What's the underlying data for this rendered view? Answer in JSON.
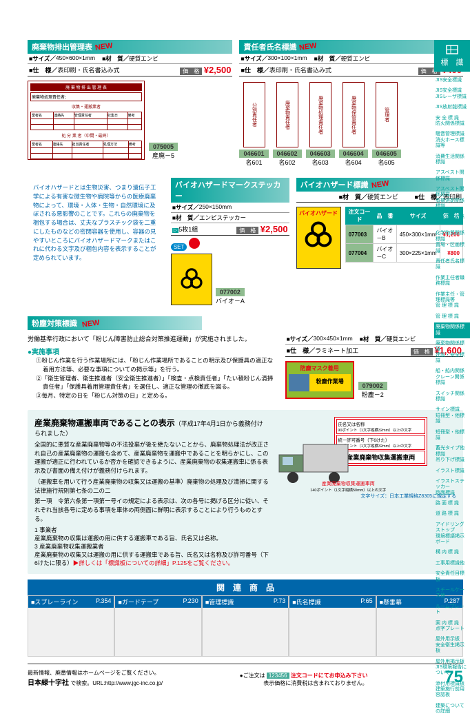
{
  "sections": {
    "waste_mgmt": {
      "title": "廃棄物排出管理表",
      "new": "NEW",
      "size_label": "■サイズ／",
      "size": "450×600×1mm",
      "material_label": "■材　質／",
      "material": "硬質エンビ",
      "spec_label": "■仕　様／",
      "spec": "表印刷・氏名書込み式",
      "price_label": "価　格",
      "price": "¥2,500",
      "code": "075005",
      "name": "産廃－5"
    },
    "responsible": {
      "title": "責任者氏名標識",
      "new": "NEW",
      "size_label": "■サイズ／",
      "size": "300×100×1mm",
      "material_label": "■材　質／",
      "material": "硬質エンビ",
      "spec_label": "■仕　様／",
      "spec": "表印刷・氏名書込み式",
      "price_label": "価　格",
      "price": "¥400",
      "tags": [
        {
          "code": "046601",
          "name": "名601",
          "text": "分別責任者"
        },
        {
          "code": "046602",
          "name": "名602",
          "text": "廃棄物責任者"
        },
        {
          "code": "046603",
          "name": "名603",
          "text": "廃棄物処理責任者"
        },
        {
          "code": "046604",
          "name": "名604",
          "text": "廃棄物保管責任者"
        },
        {
          "code": "046605",
          "name": "名605",
          "text": "管理者"
        }
      ]
    },
    "biohazard_info": "バイオハザードとは生物災害、つまり遺伝子工学による有害な微生物や病院等からの医療廃棄物によって、環境・人体・生物・自然環境に及ぼされる悪影響のことです。これらの廃棄物を梱包する場合は、丈夫なプラスチック袋を二重にしたものなどの密閉容器を使用し、容器の見やすいところにバイオハザードマークまたはこれに代わる文字及び梱包内容を表示することが定められています。",
    "bio_sticker": {
      "title": "バイオハザードマークステッカー",
      "size_label": "■サイズ／",
      "size": "250×150mm",
      "material_label": "■材　質／",
      "material": "エンビステッカー",
      "set": "5枚1組",
      "set_badge": "SET",
      "price_label": "価　格",
      "price": "¥2,500",
      "code": "077002",
      "name": "バイオ－A"
    },
    "bio_sign": {
      "title": "バイオハザード標識",
      "new": "NEW",
      "material_label": "■材　質／",
      "material": "硬質エンビ",
      "spec_label": "■仕　様／",
      "spec": "表印刷",
      "sign_text": "バイオハザード",
      "table": {
        "h1": "注文コード",
        "h2": "品　番",
        "h3": "サイズ",
        "h4": "価　格",
        "rows": [
          {
            "code": "077003",
            "name": "バイオ－B",
            "size": "450×300×1mm",
            "price": "¥1,200"
          },
          {
            "code": "077004",
            "name": "バイオ－C",
            "size": "300×225×1mm",
            "price": "¥800"
          }
        ]
      }
    },
    "dust": {
      "title": "粉塵対策標識",
      "new": "NEW",
      "intro": "労働基準行政において「粉じん障害防止総合対策推進運動」が実施されました。",
      "heading": "●実施事項",
      "items": [
        "①粉じん作業を行う作業場所には、「粉じん作業場所であることの明示及び保護具の適正な着用方法等、必要な事項についての掲示等」を行う。",
        "②「衛生管理者、衛生推進者（安全衛生推進者）」「検査・点検責任者」「たい積粉じん清掃責任者」「保護具着用管理責任者」を選任し、適正な管理の徹底を図る。",
        "③毎月、特定の日を「粉じん対策の日」と定める。"
      ],
      "size_label": "■サイズ／",
      "size": "300×450×1mm",
      "material_label": "■材　質／",
      "material": "硬質エンビ",
      "spec_label": "■仕　様／",
      "spec": "ラミネート加工",
      "price_label": "価　格",
      "price": "¥1,600",
      "sign_text1": "防塵マスク着用",
      "sign_text2": "粉塵作業場",
      "code": "079002",
      "name": "粉塵－2"
    },
    "waste_vehicle": {
      "title": "産業廃棄物運搬車両であることの表示",
      "subtitle": "（平成17年4月1日から義務付けられました）",
      "body1": "全国的に悪質な産業廃棄物等の不法投棄が後を絶たないことから、廃棄物処理法が改正され自己の産業廃棄物の運搬も含めて、産業廃棄物を運搬中であることを明らかにし、この運搬が適正に行われているか否かを確認できるように、産業廃棄物の収集運搬車に係る表示及び書面の備え付けが義務付けられます。",
      "body2": "（運搬車を用いて行う産業廃棄物の収集又は運搬の基準）廃棄物の処理及び清掃に関する法律施行規則第七条の二の二",
      "body3": "第一項　令第六条第一項第一号イの規定による表示は、次の各号に掲げる区分に従い、それぞれ当該各号に定める事項を車体の両側面に鮮明に表示することにより行うものとする。",
      "body4": "1 事業者",
      "body5": "産業廃棄物の収集は運搬の用に供する運搬車である旨、氏名又は名称。",
      "body6": "3 産業廃棄物収集運搬業者",
      "body7": "産業廃棄物の収集又は運搬の用に供する運搬車である旨、氏名又は名称及び許可番号（下6けたに限る）",
      "link": "▶詳しくは「標識板についての詳細」P.125をご覧ください。",
      "truck_label1": "氏名又は名称",
      "truck_label1b": "90ポイント（1文字縦横32mm）以上の文字",
      "truck_label2": "統一許可番号（下6けた）",
      "truck_label2b": "90ポイント（1文字縦横32mm）以上の文字",
      "truck_label3": "産業廃棄物収集運搬車両",
      "truck_label4": "産業廃棄物収集運搬車両",
      "truck_label4b": "140ポイント（1文字縦横50mm）以上の文字",
      "truck_footer": "文字サイズ：日本工業規格Z8305に規定する"
    },
    "related": {
      "header": "関　連　商　品",
      "items": [
        {
          "title": "■スプレーライン",
          "page": "P.354"
        },
        {
          "title": "■ガードテープ",
          "page": "P.230"
        },
        {
          "title": "■管理標識",
          "page": "P.73"
        },
        {
          "title": "■氏名標識",
          "page": "P.65"
        },
        {
          "title": "■懸垂幕",
          "page": "P.287"
        }
      ]
    }
  },
  "sidebar": {
    "header": "標　識",
    "items": [
      "JIS安全標識",
      "JIS安全標識\nJISレーザ標識",
      "JIS放射能標識",
      "安 全 標 識\n防火関係標識",
      "騒音管理標識\n消火ホース標識等",
      "消費生活関係標識",
      "アスベスト関係標識",
      "アスベスト関係標識\n有機溶剤関係標識",
      "化学変化関係標識",
      "化学物質関係標識\n置場・区画標識",
      "責任者氏名標識",
      "作業主任者職務標識",
      "作業主任・管理標識等\n管 理 標 識",
      "管 理 標 識",
      "廃棄物関係標識",
      "廃棄物関係標識\n建設・安全標識",
      "船・船内関係\nクレーン関係標識",
      "スイッチ関係標識",
      "サイン標識\n短冊型・他標識",
      "短冊型・他標識",
      "蓄光タイプ他標識\n吊り下げ標識",
      "イラスト標識",
      "イラストステッカー\n路面標識",
      "路 面 標 識",
      "道 路 標 識",
      "アイドリングストップ\n環境標語掲示ボード",
      "構 内 標 識",
      "工事用標識他",
      "安全責任目標板",
      "スチールケース他",
      "ルームプレート",
      "案 内 標 識\n点字プレート",
      "屋外用示板\n安全衛生掲示板",
      "屋外用掲示板\nJIS環境報告について",
      "添付用標識板\n建築施行前用容認板",
      "建築についての詳細"
    ],
    "active_index": 14
  },
  "footer": {
    "line1": "最新情報、廃番情報はホームページをご覧ください。",
    "line2a": "日本緑十字社",
    "line2b": "で検索。URL:http://www.jgc-inc.co.jp/",
    "order": "●ご注文は",
    "order_code": "123456",
    "order_text": "注文コードにてお申込み下さい",
    "tax_note": "表示価格に消費税は含まれておりません。",
    "page": "75"
  }
}
